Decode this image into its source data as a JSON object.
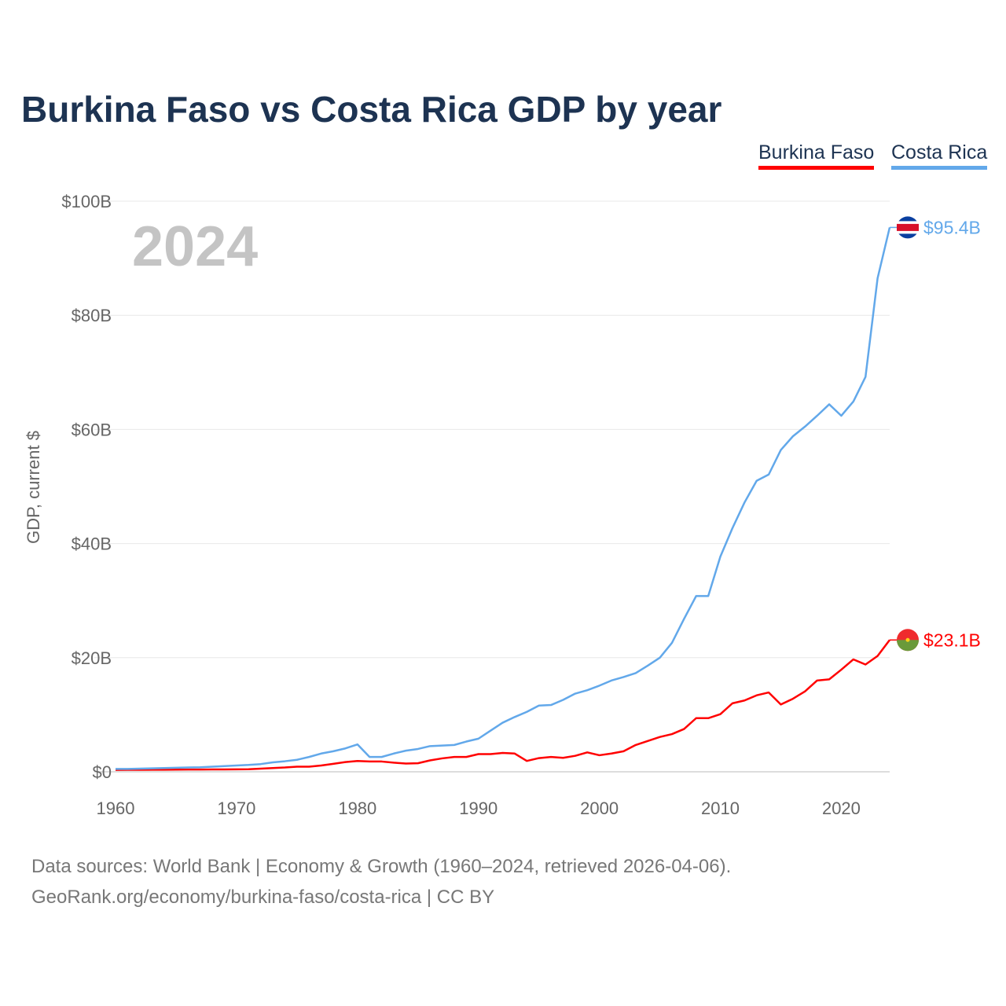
{
  "title": "Burkina Faso vs Costa Rica GDP by year",
  "legend": {
    "burkina": "Burkina Faso",
    "costa": "Costa Rica"
  },
  "year_label": "2024",
  "source": [
    "Data sources: World Bank | Economy & Growth (1960–2024, retrieved 2026-04-06).",
    "GeoRank.org/economy/burkina-faso/costa-rica | CC BY"
  ],
  "chart_data": {
    "type": "line",
    "title": "Burkina Faso vs Costa Rica GDP by year",
    "xlabel": "",
    "ylabel": "GDP, current $",
    "xlim": [
      1960,
      2024
    ],
    "ylim": [
      0,
      100
    ],
    "x_ticks": [
      "1960",
      "1970",
      "1980",
      "1990",
      "2000",
      "2010",
      "2020"
    ],
    "y_ticks": [
      "$0",
      "$20B",
      "$40B",
      "$60B",
      "$80B",
      "$100B"
    ],
    "grid": true,
    "legend_position": "top-right",
    "series": [
      {
        "name": "Burkina Faso",
        "color": "#ff0000",
        "end_label": "$23.1B",
        "values": [
          0.33,
          0.34,
          0.35,
          0.36,
          0.37,
          0.38,
          0.39,
          0.4,
          0.41,
          0.42,
          0.43,
          0.45,
          0.55,
          0.65,
          0.75,
          0.9,
          0.9,
          1.1,
          1.4,
          1.7,
          1.9,
          1.8,
          1.8,
          1.6,
          1.45,
          1.5,
          2.0,
          2.35,
          2.6,
          2.6,
          3.1,
          3.1,
          3.3,
          3.2,
          1.9,
          2.4,
          2.6,
          2.45,
          2.8,
          3.4,
          2.9,
          3.2,
          3.6,
          4.7,
          5.4,
          6.1,
          6.6,
          7.5,
          9.4,
          9.4,
          10.1,
          12.0,
          12.5,
          13.4,
          13.9,
          11.8,
          12.8,
          14.1,
          16.0,
          16.2,
          17.9,
          19.7,
          18.8,
          20.3,
          23.1
        ]
      },
      {
        "name": "Costa Rica",
        "color": "#62a8ea",
        "end_label": "$95.4B",
        "values": [
          0.5,
          0.5,
          0.55,
          0.6,
          0.65,
          0.7,
          0.75,
          0.8,
          0.9,
          1.0,
          1.1,
          1.2,
          1.35,
          1.65,
          1.85,
          2.1,
          2.6,
          3.2,
          3.6,
          4.1,
          4.8,
          2.6,
          2.6,
          3.2,
          3.7,
          4.0,
          4.5,
          4.6,
          4.7,
          5.3,
          5.8,
          7.2,
          8.6,
          9.6,
          10.5,
          11.6,
          11.7,
          12.6,
          13.7,
          14.3,
          15.1,
          16.0,
          16.6,
          17.3,
          18.6,
          20.0,
          22.6,
          26.8,
          30.8,
          30.8,
          37.7,
          42.7,
          47.2,
          51.0,
          52.1,
          56.4,
          58.8,
          60.5,
          62.4,
          64.4,
          62.4,
          64.9,
          69.2,
          86.5,
          95.4
        ]
      }
    ]
  }
}
